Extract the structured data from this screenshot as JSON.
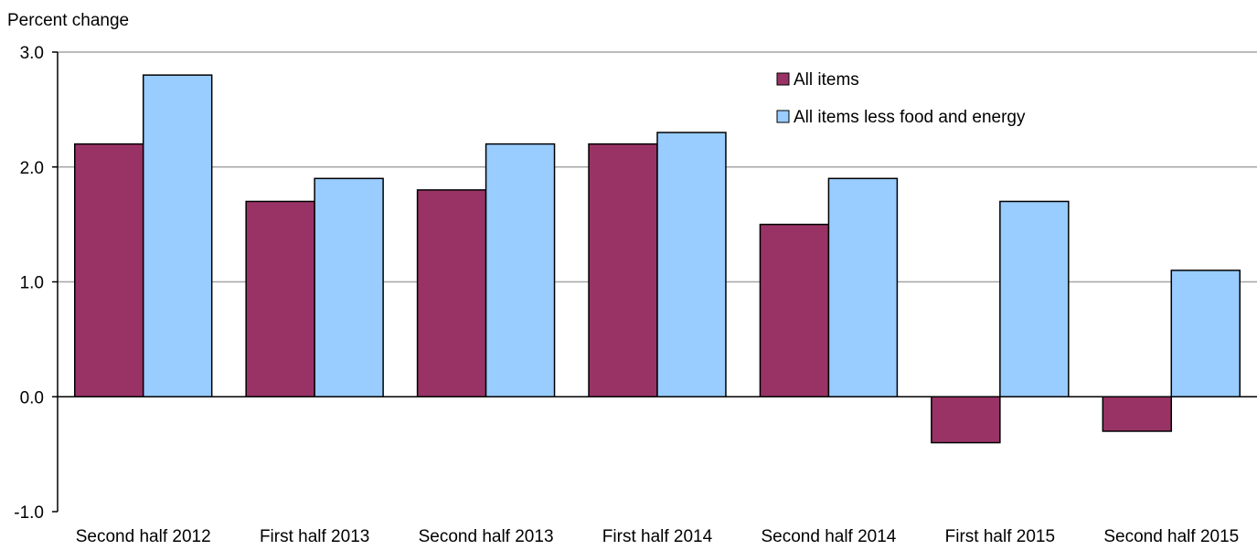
{
  "chart_data": {
    "type": "bar",
    "title": "",
    "xlabel": "",
    "ylabel": "Percent change",
    "ylim": [
      -1.0,
      3.0
    ],
    "yticks": [
      3.0,
      2.0,
      1.0,
      0.0,
      -1.0
    ],
    "ytick_labels": [
      "3.0",
      "2.0",
      "1.0",
      "0.0",
      "-1.0"
    ],
    "grid": true,
    "legend_position": "top-right",
    "categories": [
      "Second half 2012",
      "First half 2013",
      "Second half 2013",
      "First half 2014",
      "Second half 2014",
      "First half 2015",
      "Second half 2015"
    ],
    "series": [
      {
        "name": "All items",
        "color": "#993366",
        "values": [
          2.2,
          1.7,
          1.8,
          2.2,
          1.5,
          -0.4,
          -0.3
        ]
      },
      {
        "name": "All items less food and energy",
        "color": "#99CCFF",
        "values": [
          2.8,
          1.9,
          2.2,
          2.3,
          1.9,
          1.7,
          1.1
        ]
      }
    ]
  }
}
